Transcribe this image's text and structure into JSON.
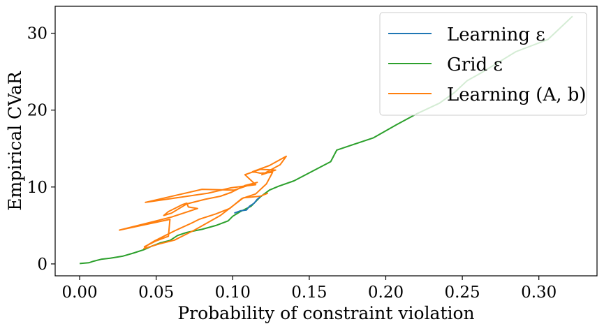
{
  "chart_data": {
    "type": "line",
    "xlabel": "Probability of constraint violation",
    "ylabel": "Empirical CVaR",
    "xlim": [
      -0.016,
      0.338
    ],
    "ylim": [
      -1.55,
      33.5
    ],
    "xticks": [
      0.0,
      0.05,
      0.1,
      0.15,
      0.2,
      0.25,
      0.3
    ],
    "xtick_labels": [
      "0.00",
      "0.05",
      "0.10",
      "0.15",
      "0.20",
      "0.25",
      "0.30"
    ],
    "yticks": [
      0,
      10,
      20,
      30
    ],
    "ytick_labels": [
      "0",
      "10",
      "20",
      "30"
    ],
    "grid": false,
    "legend_position": "top-right",
    "series": [
      {
        "name": "Learning ε",
        "color": "#1f77b4",
        "points": [
          [
            0.101,
            6.6
          ],
          [
            0.105,
            6.9
          ],
          [
            0.109,
            7.0
          ],
          [
            0.111,
            7.5
          ],
          [
            0.114,
            7.9
          ],
          [
            0.116,
            8.4
          ],
          [
            0.118,
            8.7
          ]
        ]
      },
      {
        "name": "Grid ε",
        "color": "#2ca02c",
        "points": [
          [
            0.0,
            0.05
          ],
          [
            0.006,
            0.15
          ],
          [
            0.009,
            0.35
          ],
          [
            0.014,
            0.6
          ],
          [
            0.02,
            0.75
          ],
          [
            0.028,
            1.0
          ],
          [
            0.035,
            1.4
          ],
          [
            0.042,
            1.85
          ],
          [
            0.047,
            2.3
          ],
          [
            0.053,
            2.75
          ],
          [
            0.059,
            3.05
          ],
          [
            0.064,
            3.7
          ],
          [
            0.07,
            4.1
          ],
          [
            0.08,
            4.5
          ],
          [
            0.089,
            5.0
          ],
          [
            0.097,
            5.6
          ],
          [
            0.1,
            6.2
          ],
          [
            0.105,
            6.8
          ],
          [
            0.112,
            7.5
          ],
          [
            0.118,
            8.7
          ],
          [
            0.124,
            9.6
          ],
          [
            0.13,
            10.1
          ],
          [
            0.14,
            10.8
          ],
          [
            0.164,
            13.3
          ],
          [
            0.168,
            14.8
          ],
          [
            0.192,
            16.4
          ],
          [
            0.207,
            18.1
          ],
          [
            0.22,
            19.5
          ],
          [
            0.235,
            20.9
          ],
          [
            0.245,
            22.3
          ],
          [
            0.253,
            23.8
          ],
          [
            0.262,
            24.8
          ],
          [
            0.285,
            27.6
          ],
          [
            0.306,
            29.2
          ],
          [
            0.322,
            32.2
          ]
        ]
      },
      {
        "name": "Learning (A, b)",
        "color": "#ff7f0e",
        "points": [
          [
            0.042,
            2.2
          ],
          [
            0.05,
            3.0
          ],
          [
            0.058,
            3.6
          ],
          [
            0.059,
            5.8
          ],
          [
            0.026,
            4.4
          ],
          [
            0.06,
            6.1
          ],
          [
            0.077,
            7.2
          ],
          [
            0.071,
            7.4
          ],
          [
            0.07,
            7.9
          ],
          [
            0.067,
            7.7
          ],
          [
            0.062,
            7.2
          ],
          [
            0.058,
            6.8
          ],
          [
            0.055,
            6.3
          ],
          [
            0.06,
            6.6
          ],
          [
            0.07,
            7.8
          ],
          [
            0.082,
            8.4
          ],
          [
            0.092,
            8.8
          ],
          [
            0.099,
            9.3
          ],
          [
            0.108,
            10.2
          ],
          [
            0.116,
            10.6
          ],
          [
            0.101,
            9.6
          ],
          [
            0.08,
            9.7
          ],
          [
            0.043,
            8.0
          ],
          [
            0.084,
            9.2
          ],
          [
            0.099,
            9.9
          ],
          [
            0.115,
            10.3
          ],
          [
            0.108,
            11.6
          ],
          [
            0.118,
            12.3
          ],
          [
            0.128,
            12.2
          ],
          [
            0.119,
            11.6
          ],
          [
            0.131,
            12.9
          ],
          [
            0.135,
            14.0
          ],
          [
            0.124,
            12.8
          ],
          [
            0.113,
            12.0
          ],
          [
            0.118,
            11.8
          ],
          [
            0.126,
            11.9
          ],
          [
            0.122,
            10.4
          ],
          [
            0.115,
            9.1
          ],
          [
            0.106,
            8.5
          ],
          [
            0.098,
            7.2
          ],
          [
            0.089,
            6.5
          ],
          [
            0.078,
            5.8
          ],
          [
            0.073,
            5.3
          ],
          [
            0.062,
            4.3
          ],
          [
            0.055,
            3.6
          ],
          [
            0.049,
            3.0
          ],
          [
            0.044,
            2.4
          ],
          [
            0.042,
            2.0
          ],
          [
            0.052,
            2.6
          ],
          [
            0.062,
            3.1
          ],
          [
            0.075,
            4.4
          ],
          [
            0.092,
            6.3
          ],
          [
            0.107,
            8.6
          ],
          [
            0.118,
            8.8
          ],
          [
            0.123,
            9.2
          ]
        ]
      }
    ],
    "legend": [
      {
        "label": "Learning ε",
        "color": "#1f77b4"
      },
      {
        "label": "Grid ε",
        "color": "#2ca02c"
      },
      {
        "label": "Learning (A, b)",
        "color": "#ff7f0e"
      }
    ]
  }
}
